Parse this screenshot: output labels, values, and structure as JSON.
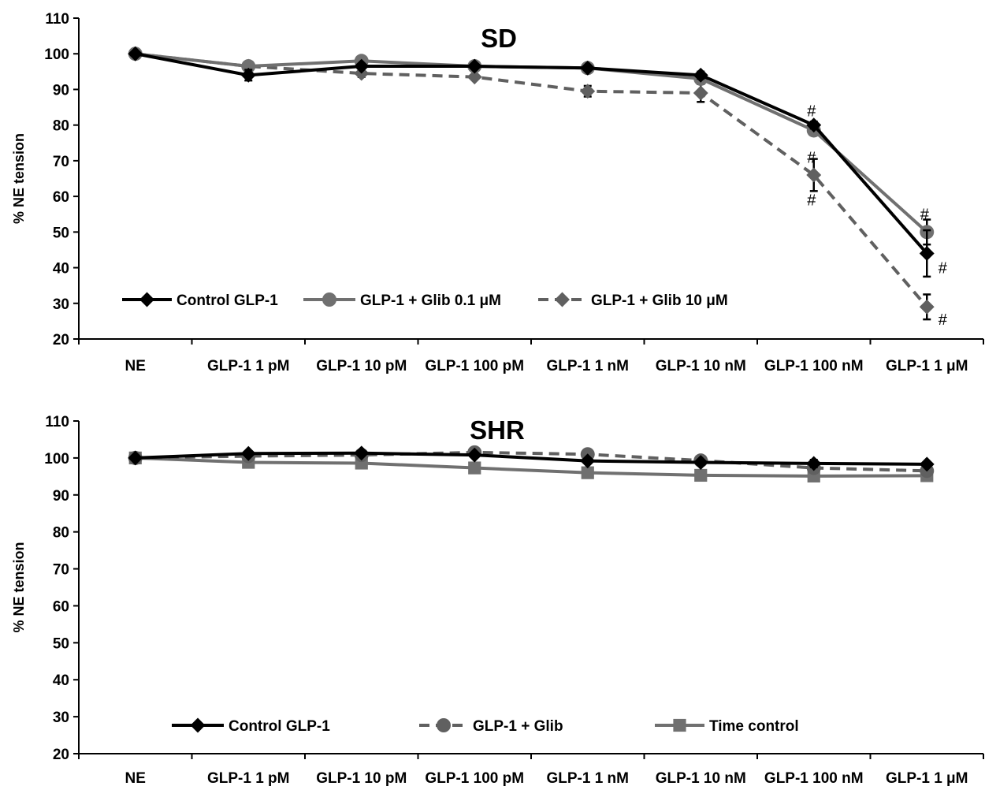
{
  "chart_data": [
    {
      "type": "line",
      "title": "SD",
      "ylabel": "% NE tension",
      "xlabel": "",
      "ylim": [
        20,
        110
      ],
      "ytick_step": 10,
      "grid": false,
      "legend_position": "bottom-left",
      "categories": [
        "NE",
        "GLP-1 1 pM",
        "GLP-1 10 pM",
        "GLP-1 100 pM",
        "GLP-1 1 nM",
        "GLP-1 10 nM",
        "GLP-1 100 nM",
        "GLP-1 1 μM"
      ],
      "series": [
        {
          "name": "Control GLP-1",
          "values": [
            100,
            94,
            96.5,
            96.5,
            96,
            94,
            80,
            44
          ],
          "errors": [
            0,
            1.5,
            0.5,
            0.5,
            0.5,
            1,
            1,
            6.5
          ],
          "color": "#000000",
          "dash": "solid",
          "marker": "diamond"
        },
        {
          "name": "GLP-1 + Glib 0.1 μM",
          "values": [
            100,
            96.5,
            98,
            96.5,
            96,
            93,
            78.5,
            50
          ],
          "errors": [
            0,
            0.5,
            0.5,
            0.5,
            0.5,
            0.5,
            0.5,
            3.5
          ],
          "color": "#707070",
          "dash": "solid",
          "marker": "circle"
        },
        {
          "name": "GLP-1 + Glib 10 μM",
          "values": [
            100,
            96.5,
            94.5,
            93.5,
            89.5,
            89,
            66,
            29
          ],
          "errors": [
            0,
            0.5,
            1,
            0.5,
            1.5,
            2.5,
            4.5,
            3.5
          ],
          "color": "#606060",
          "dash": "dashed",
          "marker": "diamond"
        }
      ],
      "annotations": [
        {
          "text": "#",
          "category": "GLP-1 100 nM",
          "y": 84
        },
        {
          "text": "#",
          "category": "GLP-1 100 nM",
          "y": 71
        },
        {
          "text": "#",
          "category": "GLP-1 100 nM",
          "y": 59
        },
        {
          "text": "#",
          "category": "GLP-1 1 μM",
          "y": 55
        },
        {
          "text": "#",
          "category": "GLP-1 1 μM",
          "y": 40,
          "offset": "right"
        },
        {
          "text": "#",
          "category": "GLP-1 1 μM",
          "y": 25.5,
          "offset": "right"
        }
      ]
    },
    {
      "type": "line",
      "title": "SHR",
      "ylabel": "% NE tension",
      "xlabel": "",
      "ylim": [
        20,
        110
      ],
      "ytick_step": 10,
      "grid": false,
      "legend_position": "bottom-left",
      "categories": [
        "NE",
        "GLP-1 1 pM",
        "GLP-1 10 pM",
        "GLP-1 100 pM",
        "GLP-1 1 nM",
        "GLP-1 10 nM",
        "GLP-1 100 nM",
        "GLP-1 1 μM"
      ],
      "series": [
        {
          "name": "Control GLP-1",
          "values": [
            100,
            101.2,
            101.3,
            100.8,
            99.2,
            98.8,
            98.5,
            98.3
          ],
          "errors": [
            0,
            0.5,
            0.5,
            0.5,
            0.5,
            0.5,
            1,
            0.5
          ],
          "color": "#000000",
          "dash": "solid",
          "marker": "diamond"
        },
        {
          "name": "GLP-1 + Glib",
          "values": [
            100,
            100.5,
            100.8,
            101.5,
            101,
            99.3,
            97.3,
            96.5
          ],
          "errors": [
            0,
            0.5,
            0.5,
            0.5,
            0.5,
            0.5,
            0.5,
            0.5
          ],
          "color": "#606060",
          "dash": "dashed",
          "marker": "circle"
        },
        {
          "name": "Time control",
          "values": [
            100,
            98.8,
            98.6,
            97.3,
            96,
            95.3,
            95.1,
            95.2
          ],
          "errors": [
            0,
            0.5,
            0.8,
            0.8,
            1,
            1,
            1,
            0.5
          ],
          "color": "#707070",
          "dash": "solid",
          "marker": "square"
        }
      ],
      "annotations": []
    }
  ]
}
